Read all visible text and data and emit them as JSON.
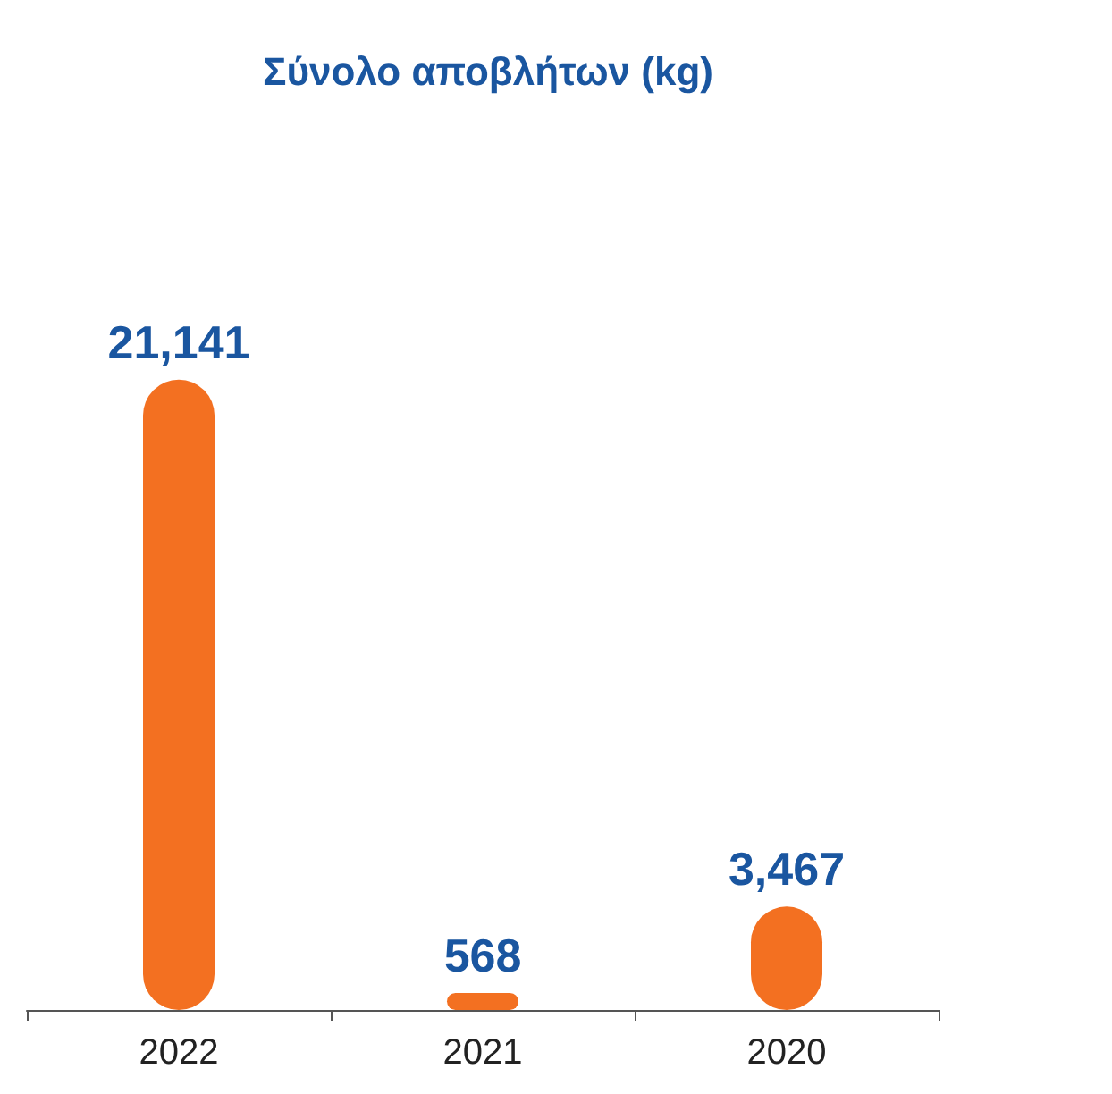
{
  "chart_data": {
    "type": "bar",
    "title": "Σύνολο αποβλήτων (kg)",
    "categories": [
      "2022",
      "2021",
      "2020"
    ],
    "values": [
      21141,
      568,
      3467
    ],
    "value_labels": [
      "21,141",
      "568",
      "3,467"
    ],
    "color": "#f37021",
    "grid": false
  }
}
